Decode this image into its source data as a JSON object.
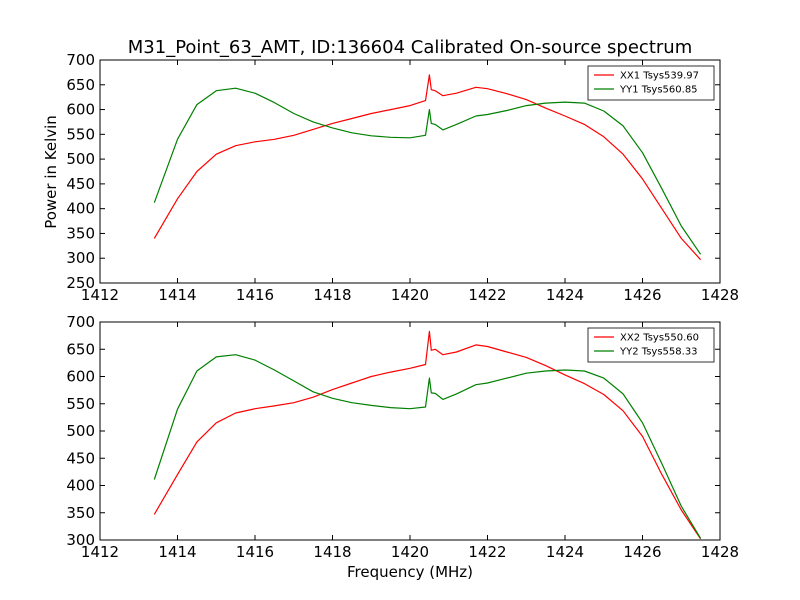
{
  "chart_data": [
    {
      "type": "line",
      "title": "M31_Point_63_AMT, ID:136604 Calibrated On-source spectrum",
      "xlabel": "",
      "ylabel": "Power in Kelvin",
      "xlim": [
        1412,
        1428
      ],
      "ylim": [
        250,
        700
      ],
      "xticks": [
        "1412",
        "1414",
        "1416",
        "1418",
        "1420",
        "1422",
        "1424",
        "1426",
        "1428"
      ],
      "yticks": [
        "250",
        "300",
        "350",
        "400",
        "450",
        "500",
        "550",
        "600",
        "650",
        "700"
      ],
      "grid": false,
      "legend_position": "top-right",
      "series": [
        {
          "name": "XX1 Tsys539.97",
          "color": "#ff0000",
          "x": [
            1413.4,
            1414,
            1414.5,
            1415,
            1415.5,
            1416,
            1416.5,
            1417,
            1417.5,
            1418,
            1418.5,
            1419,
            1419.5,
            1420,
            1420.4,
            1420.5,
            1420.55,
            1420.65,
            1420.85,
            1421.2,
            1421.7,
            1422,
            1422.5,
            1423,
            1423.5,
            1424,
            1424.5,
            1425,
            1425.5,
            1426,
            1426.5,
            1427,
            1427.5
          ],
          "y": [
            340,
            420,
            475,
            510,
            527,
            535,
            540,
            548,
            560,
            572,
            582,
            592,
            600,
            608,
            618,
            670,
            640,
            638,
            628,
            633,
            645,
            642,
            632,
            620,
            603,
            587,
            570,
            545,
            510,
            460,
            400,
            340,
            297
          ]
        },
        {
          "name": "YY1 Tsys560.85",
          "color": "#008000",
          "x": [
            1413.4,
            1414,
            1414.5,
            1415,
            1415.5,
            1416,
            1416.5,
            1417,
            1417.5,
            1418,
            1418.5,
            1419,
            1419.5,
            1420,
            1420.4,
            1420.5,
            1420.55,
            1420.65,
            1420.85,
            1421.2,
            1421.7,
            1422,
            1422.5,
            1423,
            1423.5,
            1424,
            1424.5,
            1425,
            1425.5,
            1426,
            1426.5,
            1427,
            1427.5
          ],
          "y": [
            412,
            540,
            610,
            638,
            643,
            633,
            614,
            592,
            575,
            563,
            553,
            547,
            544,
            543,
            548,
            600,
            572,
            570,
            559,
            570,
            587,
            590,
            598,
            608,
            613,
            615,
            613,
            597,
            567,
            513,
            440,
            365,
            308
          ]
        }
      ]
    },
    {
      "type": "line",
      "title": "",
      "xlabel": "Frequency (MHz)",
      "ylabel": "",
      "xlim": [
        1412,
        1428
      ],
      "ylim": [
        300,
        700
      ],
      "xticks": [
        "1412",
        "1414",
        "1416",
        "1418",
        "1420",
        "1422",
        "1424",
        "1426",
        "1428"
      ],
      "yticks": [
        "300",
        "350",
        "400",
        "450",
        "500",
        "550",
        "600",
        "650",
        "700"
      ],
      "grid": false,
      "legend_position": "top-right",
      "series": [
        {
          "name": "XX2 Tsys550.60",
          "color": "#ff0000",
          "x": [
            1413.4,
            1414,
            1414.5,
            1415,
            1415.5,
            1416,
            1416.5,
            1417,
            1417.5,
            1418,
            1418.5,
            1419,
            1419.5,
            1420,
            1420.4,
            1420.5,
            1420.55,
            1420.65,
            1420.85,
            1421.2,
            1421.7,
            1422,
            1422.5,
            1423,
            1423.5,
            1424,
            1424.5,
            1425,
            1425.5,
            1426,
            1426.5,
            1427,
            1427.5
          ],
          "y": [
            347,
            420,
            480,
            515,
            533,
            541,
            546,
            552,
            562,
            576,
            588,
            600,
            608,
            615,
            622,
            683,
            648,
            650,
            640,
            645,
            658,
            655,
            645,
            635,
            620,
            603,
            587,
            567,
            537,
            490,
            420,
            355,
            302
          ]
        },
        {
          "name": "YY2 Tsys558.33",
          "color": "#008000",
          "x": [
            1413.4,
            1414,
            1414.5,
            1415,
            1415.5,
            1416,
            1416.5,
            1417,
            1417.5,
            1418,
            1418.5,
            1419,
            1419.5,
            1420,
            1420.4,
            1420.5,
            1420.55,
            1420.65,
            1420.85,
            1421.2,
            1421.7,
            1422,
            1422.5,
            1423,
            1423.5,
            1424,
            1424.5,
            1425,
            1425.5,
            1426,
            1426.5,
            1427,
            1427.5
          ],
          "y": [
            411,
            540,
            610,
            636,
            640,
            630,
            612,
            592,
            572,
            560,
            552,
            547,
            543,
            541,
            544,
            597,
            570,
            569,
            558,
            568,
            585,
            588,
            597,
            606,
            610,
            612,
            610,
            597,
            568,
            515,
            440,
            362,
            303
          ]
        }
      ]
    }
  ]
}
